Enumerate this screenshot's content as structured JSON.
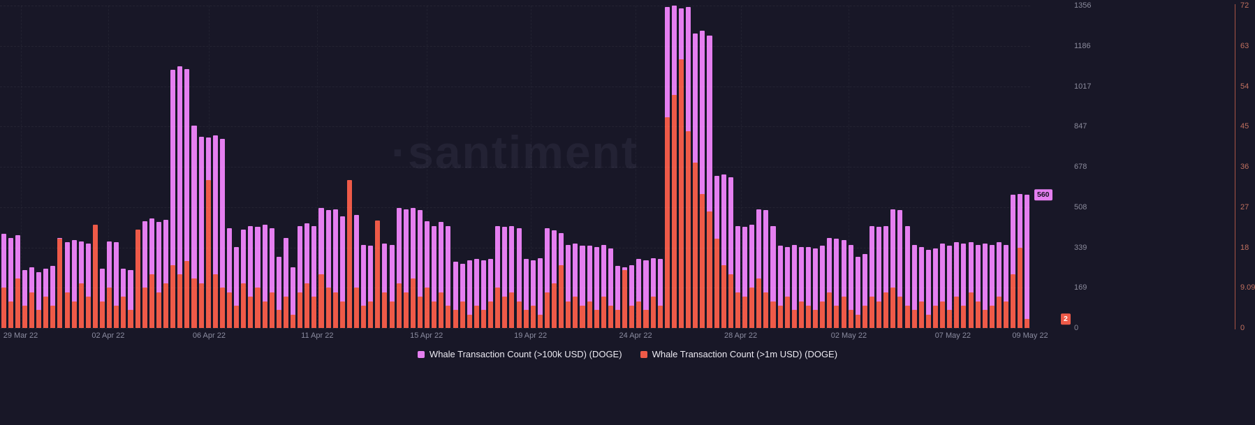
{
  "chart_data": {
    "type": "bar",
    "watermark": "·santiment",
    "colors": {
      "background": "#181727",
      "watermark": "rgba(190,190,230,0.07)",
      "grid": "rgba(255,255,255,0.05)"
    },
    "left_axis": {
      "labels": [
        "1356",
        "1186",
        "1017",
        "847",
        "678",
        "508",
        "339",
        "169",
        "0"
      ],
      "max": 1356,
      "current_badge": "560",
      "label_color": "#8b8b9c",
      "badge_text_color": "#14121f"
    },
    "right_axis": {
      "labels": [
        "72",
        "63",
        "54",
        "45",
        "36",
        "27",
        "18",
        "9.09",
        "0"
      ],
      "max": 72,
      "current_badge": "2",
      "label_color": "#c0705f",
      "line_color": "#a85446",
      "badge_text_color": "#ffffff"
    },
    "x_ticks": [
      {
        "label": "29 Mar 22",
        "pos": 2.0
      },
      {
        "label": "02 Apr 22",
        "pos": 10.5
      },
      {
        "label": "06 Apr 22",
        "pos": 20.3
      },
      {
        "label": "11 Apr 22",
        "pos": 30.8
      },
      {
        "label": "15 Apr 22",
        "pos": 41.4
      },
      {
        "label": "19 Apr 22",
        "pos": 51.5
      },
      {
        "label": "24 Apr 22",
        "pos": 61.7
      },
      {
        "label": "28 Apr 22",
        "pos": 71.9
      },
      {
        "label": "02 May 22",
        "pos": 82.4
      },
      {
        "label": "07 May 22",
        "pos": 92.5
      },
      {
        "label": "09 May 22",
        "pos": 100
      }
    ],
    "series": [
      {
        "name": "Whale Transaction Count (>100k USD) (DOGE)",
        "axis": "left",
        "color": "#e57ff0",
        "values": [
          395,
          380,
          390,
          245,
          255,
          235,
          250,
          260,
          380,
          360,
          370,
          365,
          355,
          310,
          250,
          365,
          360,
          250,
          245,
          255,
          450,
          460,
          445,
          455,
          1085,
          1100,
          1090,
          850,
          805,
          800,
          810,
          795,
          420,
          340,
          415,
          430,
          425,
          435,
          420,
          300,
          380,
          255,
          430,
          440,
          430,
          505,
          495,
          500,
          470,
          350,
          475,
          350,
          345,
          360,
          355,
          350,
          505,
          500,
          505,
          495,
          450,
          430,
          445,
          430,
          280,
          270,
          285,
          290,
          285,
          290,
          430,
          425,
          430,
          420,
          290,
          285,
          295,
          420,
          410,
          400,
          350,
          355,
          345,
          345,
          340,
          350,
          335,
          260,
          255,
          265,
          290,
          285,
          295,
          290,
          1350,
          1356,
          1345,
          1350,
          1240,
          1250,
          1230,
          640,
          645,
          635,
          430,
          425,
          435,
          500,
          495,
          430,
          345,
          340,
          350,
          340,
          340,
          335,
          345,
          380,
          375,
          370,
          350,
          300,
          310,
          430,
          425,
          430,
          500,
          495,
          430,
          350,
          340,
          330,
          335,
          355,
          345,
          360,
          355,
          360,
          350,
          355,
          350,
          360,
          350,
          560,
          565,
          560
        ]
      },
      {
        "name": "Whale Transaction Count (>1m USD) (DOGE)",
        "axis": "right",
        "color": "#ee5a48",
        "values": [
          9,
          6,
          11,
          5,
          8,
          4,
          7,
          5,
          20,
          8,
          6,
          10,
          7,
          23,
          6,
          9,
          5,
          7,
          4,
          22,
          9,
          12,
          8,
          10,
          14,
          12,
          15,
          11,
          10,
          33,
          12,
          9,
          8,
          5,
          10,
          7,
          9,
          6,
          8,
          4,
          7,
          3,
          8,
          10,
          7,
          12,
          9,
          8,
          6,
          33,
          9,
          5,
          6,
          24,
          8,
          6,
          10,
          8,
          11,
          7,
          9,
          6,
          8,
          5,
          4,
          6,
          3,
          5,
          4,
          6,
          9,
          7,
          8,
          6,
          4,
          5,
          3,
          8,
          10,
          14,
          6,
          7,
          5,
          6,
          4,
          7,
          5,
          4,
          13,
          5,
          6,
          4,
          7,
          5,
          47,
          52,
          60,
          44,
          37,
          30,
          26,
          20,
          14,
          12,
          8,
          7,
          9,
          11,
          8,
          6,
          5,
          7,
          4,
          6,
          5,
          4,
          6,
          8,
          5,
          7,
          4,
          3,
          5,
          7,
          6,
          8,
          9,
          7,
          5,
          4,
          6,
          3,
          5,
          6,
          4,
          7,
          5,
          8,
          6,
          4,
          5,
          7,
          6,
          12,
          18,
          2
        ]
      }
    ]
  }
}
